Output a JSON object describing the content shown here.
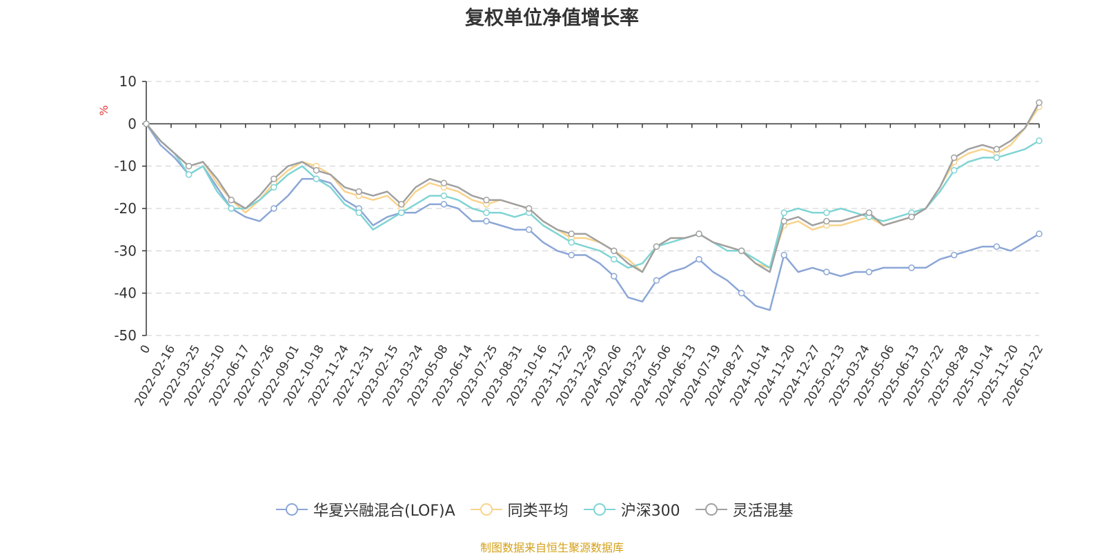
{
  "chart_data": {
    "type": "line",
    "title": "复权单位净值增长率",
    "ylabel": "%",
    "xlabel": "",
    "ylim": [
      -50,
      10
    ],
    "yticks": [
      10,
      0,
      -10,
      -20,
      -30,
      -40,
      -50
    ],
    "x_ticks": [
      "0",
      "2022-02-16",
      "2022-03-25",
      "2022-05-10",
      "2022-06-17",
      "2022-07-26",
      "2022-09-01",
      "2022-10-18",
      "2022-11-24",
      "2022-12-31",
      "2023-02-15",
      "2023-03-24",
      "2023-05-08",
      "2023-06-14",
      "2023-07-25",
      "2023-08-31",
      "2023-10-16",
      "2023-11-22",
      "2023-12-29",
      "2024-02-06",
      "2024-03-22",
      "2024-05-06",
      "2024-06-13",
      "2024-07-19",
      "2024-08-27",
      "2024-10-14",
      "2024-11-20",
      "2024-12-27",
      "2025-02-13",
      "2025-03-24",
      "2025-05-06",
      "2025-06-13",
      "2025-07-22",
      "2025-08-28",
      "2025-10-14",
      "2025-11-20",
      "2026-01-22"
    ],
    "series": [
      {
        "name": "华夏兴融混合(LOF)A",
        "color": "#8ba6d6",
        "values": [
          0,
          -5,
          -8,
          -12,
          -10,
          -15,
          -20,
          -22,
          -23,
          -20,
          -17,
          -13,
          -13,
          -14,
          -18,
          -20,
          -24,
          -22,
          -21,
          -21,
          -19,
          -19,
          -20,
          -23,
          -23,
          -24,
          -25,
          -25,
          -28,
          -30,
          -31,
          -31,
          -33,
          -36,
          -41,
          -42,
          -37,
          -35,
          -34,
          -32,
          -35,
          -37,
          -40,
          -43,
          -44,
          -31,
          -35,
          -34,
          -35,
          -36,
          -35,
          -35,
          -34,
          -34,
          -34,
          -34,
          -32,
          -31,
          -30,
          -29,
          -29,
          -30,
          -28,
          -26
        ]
      },
      {
        "name": "同类平均",
        "color": "#f9d38b",
        "values": [
          0,
          -4,
          -7,
          -10,
          -9,
          -14,
          -18,
          -21,
          -18,
          -14,
          -11,
          -9,
          -10,
          -12,
          -16,
          -17,
          -18,
          -17,
          -20,
          -16,
          -14,
          -15,
          -16,
          -18,
          -19,
          -18,
          -19,
          -20,
          -23,
          -25,
          -27,
          -27,
          -28,
          -30,
          -32,
          -35,
          -29,
          -27,
          -27,
          -26,
          -28,
          -29,
          -30,
          -33,
          -34,
          -24,
          -23,
          -25,
          -24,
          -24,
          -23,
          -22,
          -24,
          -23,
          -22,
          -20,
          -15,
          -9,
          -7,
          -6,
          -7,
          -5,
          -1,
          4
        ]
      },
      {
        "name": "沪深300",
        "color": "#7fd4d4",
        "values": [
          0,
          -4,
          -7,
          -12,
          -10,
          -16,
          -20,
          -20,
          -18,
          -15,
          -12,
          -10,
          -13,
          -15,
          -19,
          -21,
          -25,
          -23,
          -21,
          -19,
          -17,
          -17,
          -18,
          -20,
          -21,
          -21,
          -22,
          -21,
          -24,
          -26,
          -28,
          -29,
          -30,
          -32,
          -34,
          -33,
          -29,
          -28,
          -27,
          -26,
          -28,
          -30,
          -30,
          -32,
          -34,
          -21,
          -20,
          -21,
          -21,
          -20,
          -21,
          -22,
          -23,
          -22,
          -21,
          -20,
          -16,
          -11,
          -9,
          -8,
          -8,
          -7,
          -6,
          -4
        ]
      },
      {
        "name": "灵活混基",
        "color": "#a0a0a0",
        "values": [
          0,
          -4,
          -7,
          -10,
          -9,
          -13,
          -18,
          -20,
          -17,
          -13,
          -10,
          -9,
          -11,
          -12,
          -15,
          -16,
          -17,
          -16,
          -19,
          -15,
          -13,
          -14,
          -15,
          -17,
          -18,
          -18,
          -19,
          -20,
          -23,
          -25,
          -26,
          -26,
          -28,
          -30,
          -33,
          -35,
          -29,
          -27,
          -27,
          -26,
          -28,
          -29,
          -30,
          -33,
          -35,
          -23,
          -22,
          -24,
          -23,
          -23,
          -22,
          -21,
          -24,
          -23,
          -22,
          -20,
          -15,
          -8,
          -6,
          -5,
          -6,
          -4,
          -1,
          5
        ]
      }
    ]
  },
  "legend": {
    "items": [
      {
        "label": "华夏兴融混合(LOF)A",
        "color": "#8ba6d6"
      },
      {
        "label": "同类平均",
        "color": "#f9d38b"
      },
      {
        "label": "沪深300",
        "color": "#7fd4d4"
      },
      {
        "label": "灵活混基",
        "color": "#a0a0a0"
      }
    ]
  },
  "source_note": "制图数据来自恒生聚源数据库"
}
